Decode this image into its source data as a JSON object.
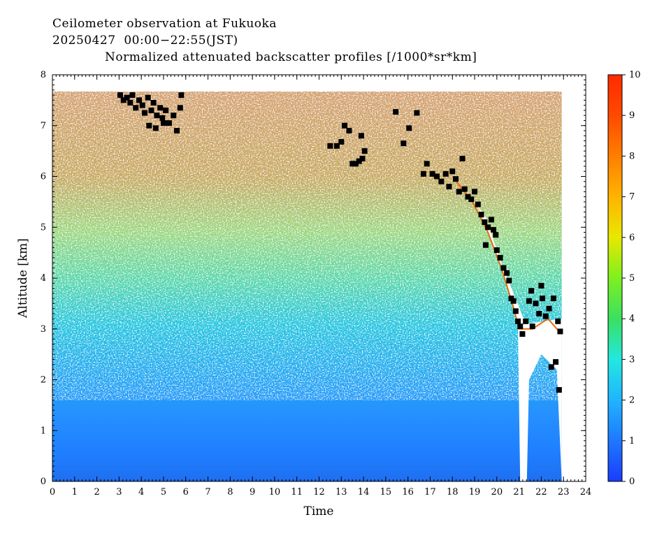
{
  "header": {
    "line1": "Ceilometer observation at Fukuoka",
    "line2": "20250427  00:00−22:55(JST)",
    "line3": "Normalized attenuated backscatter profiles [/1000*sr*km]"
  },
  "chart_data": {
    "type": "heatmap",
    "title": "Normalized attenuated backscatter profiles [/1000*sr*km]",
    "xlabel": "Time",
    "ylabel": "Altitude [km]",
    "xlim": [
      0,
      24
    ],
    "ylim": [
      0,
      8
    ],
    "x_ticks": [
      "0",
      "1",
      "2",
      "3",
      "4",
      "5",
      "6",
      "7",
      "8",
      "9",
      "10",
      "11",
      "12",
      "13",
      "14",
      "15",
      "16",
      "17",
      "18",
      "19",
      "20",
      "21",
      "22",
      "23",
      "24"
    ],
    "y_ticks": [
      "0",
      "1",
      "2",
      "3",
      "4",
      "5",
      "6",
      "7",
      "8"
    ],
    "colorbar": {
      "range": [
        0,
        10
      ],
      "ticks": [
        "0",
        "1",
        "2",
        "3",
        "4",
        "5",
        "6",
        "7",
        "8",
        "9",
        "10"
      ],
      "colors": [
        "#1a3cff",
        "#1e78ff",
        "#20b4ff",
        "#22e8e0",
        "#3ae060",
        "#7ef020",
        "#e8e800",
        "#ffb400",
        "#ff7e00",
        "#ff4a00",
        "#ff2a00"
      ]
    },
    "data_end_hour": 22.92,
    "data_top_km": 7.67,
    "cloud_base_points": [
      [
        3.05,
        7.6
      ],
      [
        3.2,
        7.5
      ],
      [
        3.35,
        7.55
      ],
      [
        3.5,
        7.45
      ],
      [
        3.6,
        7.6
      ],
      [
        3.75,
        7.35
      ],
      [
        3.9,
        7.5
      ],
      [
        4.05,
        7.4
      ],
      [
        4.15,
        7.25
      ],
      [
        4.3,
        7.55
      ],
      [
        4.45,
        7.3
      ],
      [
        4.55,
        7.45
      ],
      [
        4.7,
        7.2
      ],
      [
        4.85,
        7.35
      ],
      [
        4.95,
        7.15
      ],
      [
        5.1,
        7.3
      ],
      [
        5.25,
        7.05
      ],
      [
        5.45,
        7.2
      ],
      [
        5.6,
        6.9
      ],
      [
        5.75,
        7.35
      ],
      [
        4.35,
        7.0
      ],
      [
        4.65,
        6.95
      ],
      [
        5.0,
        7.05
      ],
      [
        5.8,
        7.6
      ],
      [
        12.5,
        6.6
      ],
      [
        12.8,
        6.6
      ],
      [
        13.0,
        6.68
      ],
      [
        13.15,
        7.0
      ],
      [
        13.35,
        6.9
      ],
      [
        13.5,
        6.25
      ],
      [
        13.65,
        6.25
      ],
      [
        13.8,
        6.3
      ],
      [
        13.95,
        6.35
      ],
      [
        14.05,
        6.5
      ],
      [
        13.9,
        6.8
      ],
      [
        15.45,
        7.27
      ],
      [
        15.8,
        6.65
      ],
      [
        16.05,
        6.95
      ],
      [
        16.4,
        7.25
      ],
      [
        16.7,
        6.05
      ],
      [
        16.85,
        6.25
      ],
      [
        17.1,
        6.05
      ],
      [
        17.3,
        6.0
      ],
      [
        17.5,
        5.9
      ],
      [
        17.7,
        6.05
      ],
      [
        17.85,
        5.8
      ],
      [
        18.0,
        6.1
      ],
      [
        18.15,
        5.95
      ],
      [
        18.3,
        5.7
      ],
      [
        18.45,
        6.35
      ],
      [
        18.55,
        5.75
      ],
      [
        18.7,
        5.6
      ],
      [
        18.85,
        5.55
      ],
      [
        19.0,
        5.7
      ],
      [
        19.15,
        5.45
      ],
      [
        19.3,
        5.25
      ],
      [
        19.45,
        5.1
      ],
      [
        19.6,
        5.0
      ],
      [
        19.75,
        5.15
      ],
      [
        19.85,
        4.95
      ],
      [
        20.0,
        4.55
      ],
      [
        20.15,
        4.4
      ],
      [
        20.3,
        4.2
      ],
      [
        20.45,
        4.1
      ],
      [
        20.55,
        3.95
      ],
      [
        20.65,
        3.6
      ],
      [
        20.75,
        3.55
      ],
      [
        20.85,
        3.35
      ],
      [
        20.95,
        3.15
      ],
      [
        21.05,
        3.05
      ],
      [
        21.15,
        2.9
      ],
      [
        21.3,
        3.15
      ],
      [
        21.45,
        3.55
      ],
      [
        21.6,
        3.05
      ],
      [
        21.75,
        3.5
      ],
      [
        21.9,
        3.3
      ],
      [
        22.05,
        3.6
      ],
      [
        22.2,
        3.25
      ],
      [
        22.35,
        3.4
      ],
      [
        22.45,
        2.25
      ],
      [
        22.55,
        3.6
      ],
      [
        22.65,
        2.35
      ],
      [
        22.75,
        3.15
      ],
      [
        22.85,
        2.95
      ],
      [
        22.8,
        1.8
      ],
      [
        22.0,
        3.85
      ],
      [
        21.55,
        3.75
      ],
      [
        19.95,
        4.85
      ],
      [
        19.5,
        4.65
      ]
    ]
  }
}
